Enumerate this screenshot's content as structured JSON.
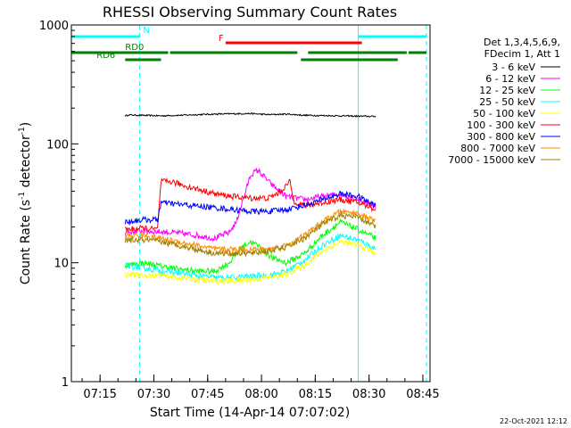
{
  "chart_data": {
    "type": "line",
    "title": "RHESSI Observing Summary Count Rates",
    "xlabel": "Start Time (14-Apr-14 07:07:02)",
    "ylabel_main": "Count Rate (s",
    "ylabel_sup1": "-1",
    "ylabel_mid": " detector",
    "ylabel_sup2": "-1",
    "ylabel_end": ")",
    "yscale": "log",
    "ylim": [
      1,
      1000
    ],
    "xlim_minutes": [
      0,
      100
    ],
    "x_units": "minutes after 07:07:02",
    "x_ticks": [
      {
        "m": 8,
        "label": "07:15"
      },
      {
        "m": 23,
        "label": "07:30"
      },
      {
        "m": 38,
        "label": "07:45"
      },
      {
        "m": 53,
        "label": "08:00"
      },
      {
        "m": 68,
        "label": "08:15"
      },
      {
        "m": 83,
        "label": "08:30"
      },
      {
        "m": 98,
        "label": "08:45"
      }
    ],
    "y_ticks": [
      {
        "v": 1,
        "label": "1"
      },
      {
        "v": 10,
        "label": "10"
      },
      {
        "v": 100,
        "label": "100"
      },
      {
        "v": 1000,
        "label": "1000"
      }
    ],
    "legend_header": [
      "Det 1,3,4,5,6,9,",
      "FDecim 1, Att 1"
    ],
    "legend_position": "right",
    "timestamp": "22-Oct-2021 12:12",
    "series": [
      {
        "name": "3 - 6 keV",
        "color": "#000000",
        "x": [
          15,
          16,
          25,
          40,
          50,
          55,
          60,
          65,
          75,
          85
        ],
        "y": [
          172,
          175,
          172,
          178,
          180,
          176,
          178,
          174,
          172,
          170
        ]
      },
      {
        "name": "6 - 12 keV",
        "color": "#ff00ff",
        "x": [
          15,
          20,
          28,
          35,
          40,
          44,
          46,
          48,
          50,
          52,
          54,
          56,
          58,
          60,
          65,
          70,
          75,
          80,
          85
        ],
        "y": [
          18,
          18.5,
          18,
          17,
          16,
          18,
          22,
          35,
          55,
          60,
          52,
          45,
          40,
          36,
          34,
          36,
          38,
          34,
          30
        ]
      },
      {
        "name": "12 - 25 keV",
        "color": "#00ff00",
        "x": [
          15,
          20,
          28,
          35,
          40,
          44,
          48,
          50,
          52,
          56,
          60,
          65,
          70,
          75,
          80,
          85
        ],
        "y": [
          9.5,
          10,
          9,
          8.5,
          8.5,
          10,
          14,
          15,
          14,
          11,
          10,
          12,
          17,
          22,
          19,
          16
        ]
      },
      {
        "name": "25 - 50 keV",
        "color": "#00ffff",
        "x": [
          15,
          20,
          25,
          30,
          35,
          40,
          45,
          50,
          55,
          60,
          65,
          70,
          75,
          80,
          85
        ],
        "y": [
          9.5,
          9,
          8.6,
          8.2,
          7.8,
          7.5,
          7.5,
          7.7,
          7.8,
          8.5,
          10.5,
          14,
          17,
          15.5,
          13
        ]
      },
      {
        "name": "50 - 100 keV",
        "color": "#ffff00",
        "x": [
          15,
          20,
          25,
          30,
          35,
          40,
          45,
          50,
          55,
          60,
          65,
          70,
          75,
          80,
          85
        ],
        "y": [
          8,
          7.8,
          7.8,
          7.5,
          7.2,
          7,
          7,
          7.2,
          7.5,
          8,
          9.5,
          12.5,
          15,
          14,
          12
        ]
      },
      {
        "name": "100 - 300 keV",
        "color": "#ff0000",
        "x": [
          15,
          20,
          24,
          25,
          28,
          32,
          36,
          40,
          45,
          50,
          55,
          58,
          61,
          62,
          65,
          70,
          75,
          80,
          85
        ],
        "y": [
          19,
          19.5,
          19,
          48,
          48,
          44,
          41,
          38,
          36,
          35,
          35,
          39,
          48,
          33,
          30,
          32,
          34,
          32,
          28
        ]
      },
      {
        "name": "300 - 800 keV",
        "color": "#0000ff",
        "x": [
          15,
          20,
          24,
          25,
          30,
          35,
          40,
          45,
          50,
          55,
          60,
          62,
          66,
          70,
          75,
          80,
          85
        ],
        "y": [
          22,
          23,
          23,
          32,
          31,
          30,
          29,
          28,
          27,
          27,
          28,
          29,
          31,
          34,
          38,
          36,
          30
        ]
      },
      {
        "name": "800 - 7000 keV",
        "color": "#ff8c00",
        "x": [
          15,
          20,
          25,
          30,
          35,
          40,
          45,
          50,
          55,
          60,
          65,
          70,
          75,
          80,
          85
        ],
        "y": [
          17,
          17,
          16,
          15,
          14,
          13,
          13,
          13,
          13,
          14,
          17,
          22,
          27,
          26,
          22
        ]
      },
      {
        "name": "7000 - 15000 keV",
        "color": "#a08000",
        "x": [
          15,
          20,
          25,
          30,
          35,
          40,
          45,
          50,
          55,
          60,
          65,
          70,
          75,
          80,
          85
        ],
        "y": [
          15.5,
          15.5,
          15,
          14,
          13,
          12,
          12,
          12,
          12.5,
          13.5,
          16,
          21,
          25,
          24,
          20
        ]
      }
    ],
    "flag_bars": [
      {
        "label": "N",
        "color": "#00ffff",
        "segments": [
          [
            0,
            19
          ]
        ],
        "label_m": 20
      },
      {
        "label": "",
        "color": "#00ffff",
        "segments": [
          [
            80,
            99
          ]
        ]
      },
      {
        "label": "F",
        "color": "#ff0000",
        "segments": [
          [
            43,
            81
          ]
        ],
        "label_m": 41
      },
      {
        "label": "RD0",
        "color": "#008000",
        "segments": [
          [
            0,
            27
          ],
          [
            27.5,
            63
          ],
          [
            66,
            93.5
          ],
          [
            94,
            99
          ]
        ],
        "label_m": 15
      },
      {
        "label": "RD6",
        "color": "#008000",
        "segments": [
          [
            15,
            25
          ],
          [
            64,
            91
          ]
        ],
        "label_m": 7
      }
    ],
    "vertical_markers": [
      {
        "m": 0,
        "color": "#00ffff",
        "style": "solid"
      },
      {
        "m": 19,
        "color": "#00ffff",
        "style": "dashed"
      },
      {
        "m": 80,
        "color": "#00ffff",
        "style": "solid"
      },
      {
        "m": 99,
        "color": "#00ffff",
        "style": "dashed"
      }
    ]
  }
}
